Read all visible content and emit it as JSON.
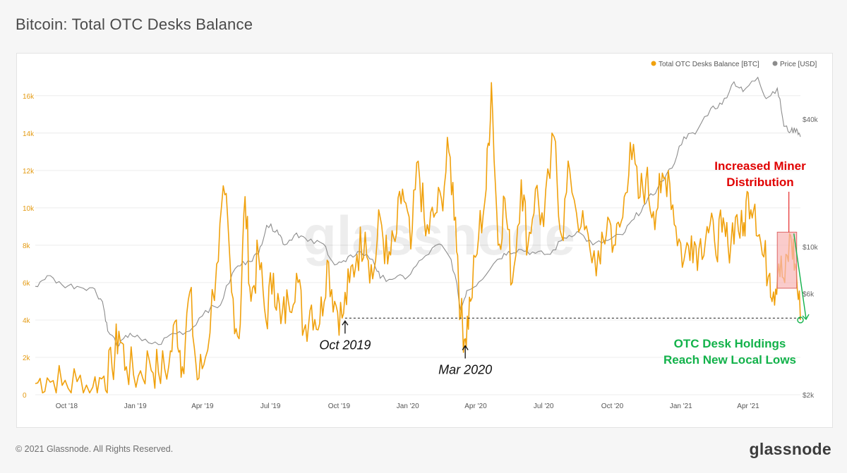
{
  "page": {
    "title": "Bitcoin: Total OTC Desks Balance",
    "copyright": "© 2021 Glassnode. All Rights Reserved.",
    "logo": "glassnode",
    "watermark": "glassnode"
  },
  "chart_data": {
    "type": "line",
    "title": "Bitcoin: Total OTC Desks Balance",
    "x_tick_labels": [
      "Oct '18",
      "Jan '19",
      "Apr '19",
      "Jul '19",
      "Oct '19",
      "Jan '20",
      "Apr '20",
      "Jul '20",
      "Oct '20",
      "Jan '21",
      "Apr '21"
    ],
    "x_range": [
      "2018-08-20",
      "2021-06-10"
    ],
    "y_left": {
      "label": "",
      "ticks": [
        "0",
        "2k",
        "4k",
        "6k",
        "8k",
        "10k",
        "12k",
        "14k",
        "16k"
      ],
      "range": [
        0,
        17500
      ]
    },
    "y_right": {
      "label": "",
      "scale": "log",
      "ticks": [
        "$2k",
        "$6k",
        "$10k",
        "$40k"
      ],
      "range": [
        2000,
        70000
      ]
    },
    "grid": "horizontal",
    "legend": {
      "position": "top-right"
    },
    "series": [
      {
        "name": "Total OTC Desks Balance [BTC]",
        "axis": "left",
        "color": "#f0a10d",
        "points": [
          [
            "2018-08-20",
            600
          ],
          [
            "2018-09-05",
            900
          ],
          [
            "2018-09-25",
            500
          ],
          [
            "2018-10-15",
            700
          ],
          [
            "2018-11-05",
            400
          ],
          [
            "2018-11-20",
            1000
          ],
          [
            "2018-12-01",
            1400
          ],
          [
            "2018-12-10",
            3400
          ],
          [
            "2018-12-20",
            1500
          ],
          [
            "2019-01-05",
            1000
          ],
          [
            "2019-01-20",
            1800
          ],
          [
            "2019-02-01",
            1200
          ],
          [
            "2019-02-15",
            1600
          ],
          [
            "2019-02-25",
            4000
          ],
          [
            "2019-03-05",
            1500
          ],
          [
            "2019-03-15",
            5500
          ],
          [
            "2019-03-25",
            800
          ],
          [
            "2019-04-05",
            2000
          ],
          [
            "2019-04-20",
            7000
          ],
          [
            "2019-05-01",
            10700
          ],
          [
            "2019-05-10",
            5500
          ],
          [
            "2019-05-20",
            3000
          ],
          [
            "2019-05-28",
            10600
          ],
          [
            "2019-06-05",
            5000
          ],
          [
            "2019-06-15",
            7500
          ],
          [
            "2019-06-25",
            4000
          ],
          [
            "2019-07-05",
            6500
          ],
          [
            "2019-07-15",
            3800
          ],
          [
            "2019-07-25",
            5000
          ],
          [
            "2019-08-05",
            6500
          ],
          [
            "2019-08-15",
            3500
          ],
          [
            "2019-08-25",
            4800
          ],
          [
            "2019-09-05",
            3800
          ],
          [
            "2019-09-15",
            7200
          ],
          [
            "2019-09-25",
            5000
          ],
          [
            "2019-10-05",
            4100
          ],
          [
            "2019-10-15",
            6000
          ],
          [
            "2019-10-25",
            7500
          ],
          [
            "2019-11-05",
            8700
          ],
          [
            "2019-11-15",
            6200
          ],
          [
            "2019-11-25",
            9500
          ],
          [
            "2019-12-05",
            7000
          ],
          [
            "2019-12-15",
            8200
          ],
          [
            "2019-12-25",
            11000
          ],
          [
            "2020-01-05",
            7800
          ],
          [
            "2020-01-15",
            12500
          ],
          [
            "2020-01-25",
            8500
          ],
          [
            "2020-02-05",
            9500
          ],
          [
            "2020-02-15",
            10500
          ],
          [
            "2020-02-25",
            13000
          ],
          [
            "2020-03-05",
            9500
          ],
          [
            "2020-03-12",
            4200
          ],
          [
            "2020-03-18",
            3000
          ],
          [
            "2020-03-25",
            5000
          ],
          [
            "2020-04-05",
            8500
          ],
          [
            "2020-04-15",
            11000
          ],
          [
            "2020-04-22",
            16700
          ],
          [
            "2020-05-01",
            8000
          ],
          [
            "2020-05-10",
            10500
          ],
          [
            "2020-05-20",
            6000
          ],
          [
            "2020-06-01",
            11500
          ],
          [
            "2020-06-10",
            8000
          ],
          [
            "2020-06-20",
            11000
          ],
          [
            "2020-07-01",
            9000
          ],
          [
            "2020-07-15",
            13800
          ],
          [
            "2020-07-25",
            8500
          ],
          [
            "2020-08-05",
            12000
          ],
          [
            "2020-08-20",
            9000
          ],
          [
            "2020-09-01",
            7800
          ],
          [
            "2020-09-15",
            7000
          ],
          [
            "2020-09-25",
            9500
          ],
          [
            "2020-10-05",
            8000
          ],
          [
            "2020-10-15",
            9500
          ],
          [
            "2020-10-25",
            13500
          ],
          [
            "2020-11-05",
            10500
          ],
          [
            "2020-11-15",
            11500
          ],
          [
            "2020-11-25",
            9800
          ],
          [
            "2020-12-05",
            10800
          ],
          [
            "2020-12-15",
            12000
          ],
          [
            "2020-12-25",
            9000
          ],
          [
            "2021-01-05",
            7200
          ],
          [
            "2021-01-15",
            8500
          ],
          [
            "2021-01-25",
            7800
          ],
          [
            "2021-02-05",
            9000
          ],
          [
            "2021-02-15",
            8200
          ],
          [
            "2021-02-25",
            8700
          ],
          [
            "2021-03-05",
            8000
          ],
          [
            "2021-03-15",
            9500
          ],
          [
            "2021-03-25",
            8500
          ],
          [
            "2021-04-01",
            10800
          ],
          [
            "2021-04-10",
            10200
          ],
          [
            "2021-04-20",
            7500
          ],
          [
            "2021-04-30",
            6500
          ],
          [
            "2021-05-05",
            5500
          ],
          [
            "2021-05-12",
            7000
          ],
          [
            "2021-05-20",
            6000
          ],
          [
            "2021-05-28",
            8500
          ],
          [
            "2021-06-03",
            7000
          ],
          [
            "2021-06-10",
            4000
          ]
        ]
      },
      {
        "name": "Price [USD]",
        "axis": "right",
        "color": "#8c8c8c",
        "points": [
          [
            "2018-08-20",
            6500
          ],
          [
            "2018-09-05",
            7300
          ],
          [
            "2018-09-25",
            6600
          ],
          [
            "2018-10-15",
            6500
          ],
          [
            "2018-11-05",
            6400
          ],
          [
            "2018-11-18",
            5500
          ],
          [
            "2018-11-25",
            4000
          ],
          [
            "2018-12-10",
            3400
          ],
          [
            "2018-12-25",
            3900
          ],
          [
            "2019-01-10",
            3600
          ],
          [
            "2019-02-01",
            3450
          ],
          [
            "2019-02-20",
            3900
          ],
          [
            "2019-03-15",
            4000
          ],
          [
            "2019-04-05",
            5000
          ],
          [
            "2019-04-25",
            5300
          ],
          [
            "2019-05-15",
            7900
          ],
          [
            "2019-06-01",
            8600
          ],
          [
            "2019-06-15",
            9200
          ],
          [
            "2019-06-26",
            12600
          ],
          [
            "2019-07-10",
            12000
          ],
          [
            "2019-07-20",
            10200
          ],
          [
            "2019-08-05",
            11600
          ],
          [
            "2019-08-20",
            10600
          ],
          [
            "2019-09-10",
            10300
          ],
          [
            "2019-09-25",
            8200
          ],
          [
            "2019-10-10",
            8500
          ],
          [
            "2019-10-26",
            9500
          ],
          [
            "2019-11-15",
            8700
          ],
          [
            "2019-11-25",
            7100
          ],
          [
            "2019-12-15",
            7100
          ],
          [
            "2020-01-01",
            7200
          ],
          [
            "2020-01-20",
            8700
          ],
          [
            "2020-02-12",
            10300
          ],
          [
            "2020-02-28",
            8700
          ],
          [
            "2020-03-12",
            5000
          ],
          [
            "2020-03-20",
            6200
          ],
          [
            "2020-04-05",
            6800
          ],
          [
            "2020-04-30",
            8700
          ],
          [
            "2020-05-15",
            9500
          ],
          [
            "2020-06-01",
            9700
          ],
          [
            "2020-06-20",
            9300
          ],
          [
            "2020-07-10",
            9200
          ],
          [
            "2020-07-28",
            11000
          ],
          [
            "2020-08-15",
            11800
          ],
          [
            "2020-09-05",
            10200
          ],
          [
            "2020-09-25",
            10700
          ],
          [
            "2020-10-15",
            11400
          ],
          [
            "2020-10-30",
            13500
          ],
          [
            "2020-11-15",
            16000
          ],
          [
            "2020-12-01",
            19000
          ],
          [
            "2020-12-20",
            23500
          ],
          [
            "2021-01-05",
            33000
          ],
          [
            "2021-01-20",
            34000
          ],
          [
            "2021-02-10",
            45000
          ],
          [
            "2021-02-25",
            47000
          ],
          [
            "2021-03-13",
            60000
          ],
          [
            "2021-03-25",
            54000
          ],
          [
            "2021-04-14",
            63000
          ],
          [
            "2021-04-25",
            50000
          ],
          [
            "2021-05-10",
            56000
          ],
          [
            "2021-05-19",
            37000
          ],
          [
            "2021-05-28",
            35000
          ],
          [
            "2021-06-05",
            36000
          ],
          [
            "2021-06-10",
            33000
          ]
        ]
      }
    ],
    "annotations": [
      {
        "id": "oct2019",
        "text": "Oct 2019",
        "date": "2019-10-09",
        "value": 4100
      },
      {
        "id": "mar2020",
        "text": "Mar 2020",
        "date": "2020-03-18",
        "value": 3000
      },
      {
        "id": "miner",
        "lines": [
          "Increased Miner",
          "Distribution"
        ],
        "color": "#e00000",
        "box": {
          "x": [
            "2021-05-10",
            "2021-06-05"
          ],
          "y": [
            5700,
            8700
          ]
        }
      },
      {
        "id": "lows",
        "lines": [
          "OTC Desk Holdings",
          "Reach New Local Lows"
        ],
        "color": "#12b24a",
        "date": "2021-06-10",
        "value": 4000
      },
      {
        "id": "support",
        "type": "dashed-hline",
        "value": 4100,
        "from": "2019-10-09",
        "to": "2021-06-10"
      }
    ]
  }
}
